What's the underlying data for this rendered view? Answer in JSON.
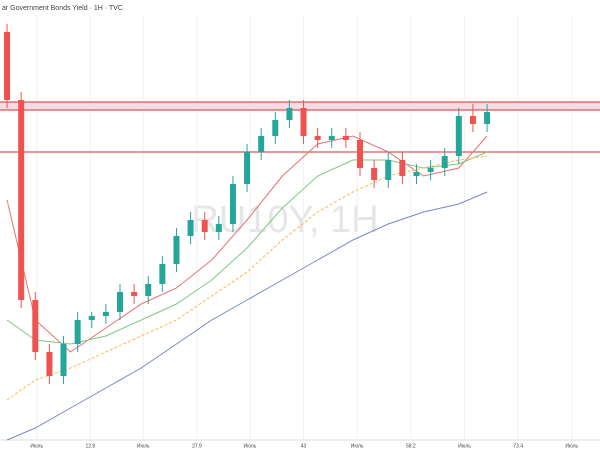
{
  "chart_data": {
    "type": "candlestick",
    "title": "ar Government Bonds Yield · 1H · TVC",
    "watermark": "RU10Y, 1H",
    "x": [
      1,
      3,
      5,
      7,
      9,
      11,
      13,
      15,
      17,
      19,
      21,
      23,
      25,
      27,
      29,
      31,
      33,
      35,
      37,
      39,
      41,
      43,
      45,
      47,
      49,
      51,
      53,
      55,
      57,
      59,
      61,
      63,
      65,
      67,
      69
    ],
    "open": [
      102,
      85,
      35,
      22,
      16,
      24,
      30,
      31,
      32,
      37,
      36,
      39,
      44,
      51,
      55,
      52,
      54,
      64,
      72,
      76,
      80,
      83,
      76,
      75,
      76,
      75,
      68,
      65,
      70,
      66,
      67,
      68,
      71,
      81,
      79
    ],
    "high": [
      104,
      87,
      37,
      24,
      26,
      32,
      32,
      34,
      39,
      39,
      41,
      46,
      53,
      57,
      57,
      56,
      66,
      74,
      78,
      82,
      85,
      85,
      78,
      78,
      78,
      77,
      70,
      72,
      72,
      69,
      70,
      73,
      83,
      84,
      84
    ],
    "low": [
      83,
      33,
      20,
      14,
      14,
      22,
      28,
      29,
      30,
      34,
      34,
      37,
      42,
      49,
      50,
      50,
      52,
      62,
      70,
      74,
      78,
      74,
      73,
      73,
      73,
      66,
      63,
      63,
      64,
      64,
      65,
      66,
      69,
      77,
      77
    ],
    "close": [
      85,
      35,
      22,
      16,
      24,
      30,
      31,
      32,
      37,
      36,
      39,
      44,
      51,
      55,
      52,
      54,
      64,
      72,
      76,
      80,
      83,
      76,
      75,
      76,
      75,
      68,
      65,
      70,
      66,
      67,
      68,
      71,
      81,
      79,
      82
    ],
    "up_color": "#26a69a",
    "down_color": "#ef5350",
    "series": [
      {
        "color": "#e57373",
        "x": [
          1,
          5,
          10,
          15,
          20,
          25,
          30,
          35,
          40,
          45,
          50,
          55,
          60,
          65,
          69
        ],
        "values": [
          60,
          30,
          22,
          28,
          34,
          38,
          45,
          55,
          66,
          74,
          76,
          72,
          66,
          68,
          76
        ]
      },
      {
        "color": "#81c784",
        "x": [
          1,
          5,
          10,
          15,
          20,
          25,
          30,
          35,
          40,
          45,
          50,
          55,
          60,
          65,
          69
        ],
        "values": [
          30,
          25,
          24,
          26,
          30,
          34,
          40,
          48,
          58,
          66,
          70,
          70,
          68,
          69,
          72
        ]
      },
      {
        "color": "#ffb74d",
        "dashed": true,
        "x": [
          1,
          5,
          10,
          15,
          20,
          25,
          30,
          35,
          40,
          45,
          50,
          55,
          60,
          65,
          69
        ],
        "values": [
          10,
          15,
          18,
          22,
          26,
          30,
          36,
          42,
          50,
          57,
          62,
          66,
          68,
          70,
          71
        ]
      },
      {
        "color": "#7986cb",
        "x": [
          1,
          5,
          10,
          15,
          20,
          25,
          30,
          35,
          40,
          45,
          50,
          55,
          60,
          65,
          69
        ],
        "values": [
          0,
          3,
          8,
          13,
          18,
          24,
          30,
          35,
          40,
          45,
          50,
          54,
          57,
          59,
          62
        ]
      }
    ],
    "levels": [
      84.5,
      82.5,
      72
    ],
    "level_color": "#d32f2f",
    "xlim": [
      0,
      85
    ],
    "ylim": [
      0,
      110
    ],
    "xticks": [
      {
        "value": 5.2,
        "label": "Июль"
      },
      12.8,
      {
        "value": 20.3,
        "label": "Июль"
      },
      27.9,
      {
        "value": 35.4,
        "label": "Июль"
      },
      43,
      {
        "value": 50.6,
        "label": "Июль"
      },
      58.2,
      {
        "value": 65.8,
        "label": "Июль"
      },
      73.4,
      {
        "value": 81,
        "label": "Июль"
      }
    ]
  }
}
